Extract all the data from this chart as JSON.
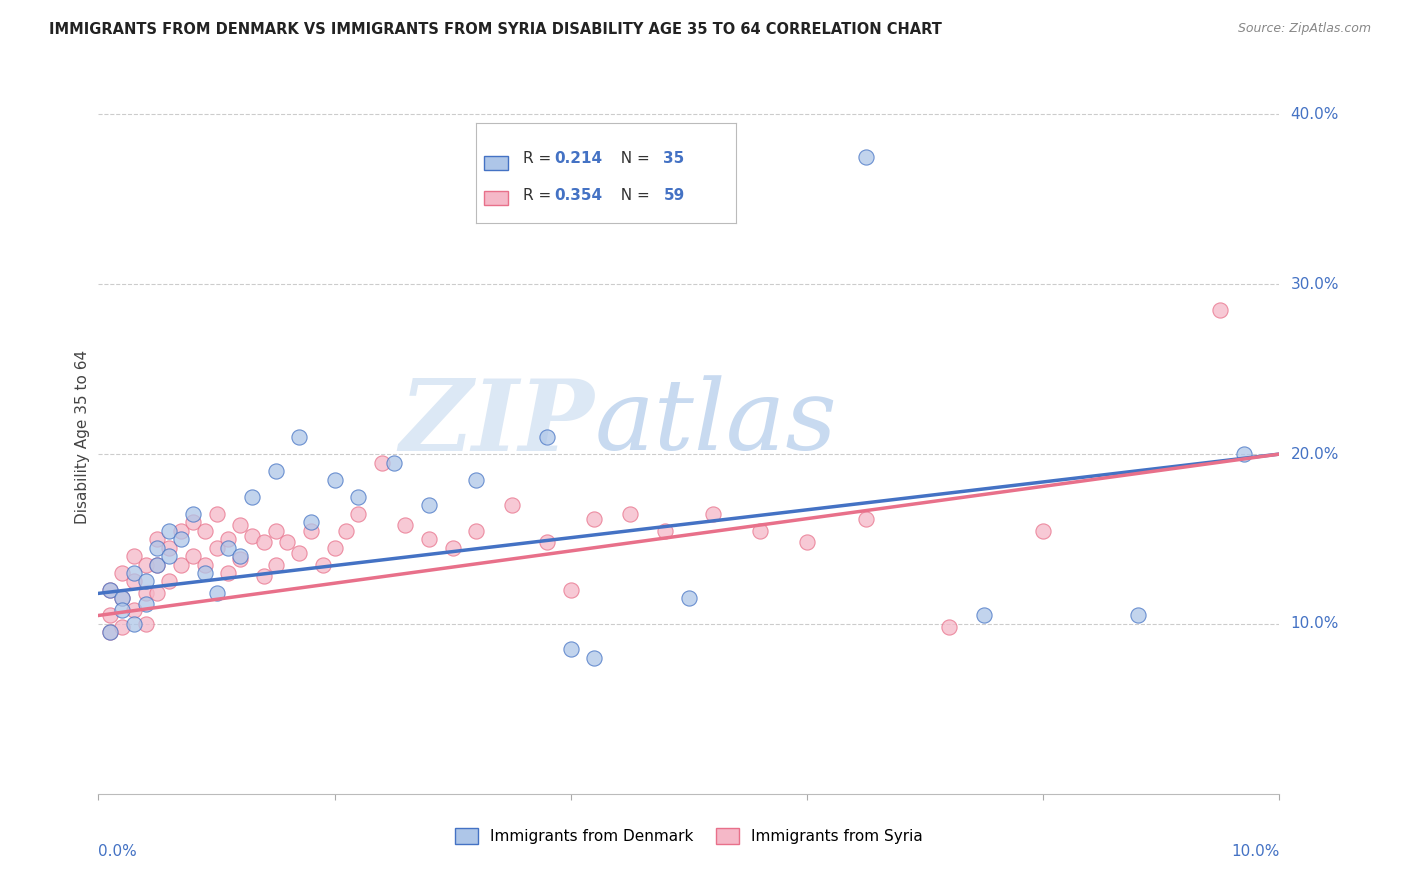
{
  "title": "IMMIGRANTS FROM DENMARK VS IMMIGRANTS FROM SYRIA DISABILITY AGE 35 TO 64 CORRELATION CHART",
  "source": "Source: ZipAtlas.com",
  "ylabel": "Disability Age 35 to 64",
  "xlim": [
    0.0,
    0.1
  ],
  "ylim": [
    0.0,
    0.42
  ],
  "yticks": [
    0.1,
    0.2,
    0.3,
    0.4
  ],
  "ytick_labels": [
    "10.0%",
    "20.0%",
    "30.0%",
    "40.0%"
  ],
  "denmark_R": 0.214,
  "denmark_N": 35,
  "syria_R": 0.354,
  "syria_N": 59,
  "denmark_color": "#aec6e8",
  "syria_color": "#f5b8c8",
  "denmark_line_color": "#4472c4",
  "syria_line_color": "#e8708a",
  "watermark_zip": "ZIP",
  "watermark_atlas": "atlas",
  "denmark_x": [
    0.001,
    0.001,
    0.002,
    0.002,
    0.003,
    0.003,
    0.004,
    0.004,
    0.005,
    0.005,
    0.006,
    0.006,
    0.007,
    0.008,
    0.009,
    0.01,
    0.011,
    0.012,
    0.013,
    0.015,
    0.017,
    0.018,
    0.02,
    0.022,
    0.025,
    0.028,
    0.032,
    0.038,
    0.04,
    0.042,
    0.05,
    0.065,
    0.075,
    0.088,
    0.097
  ],
  "denmark_y": [
    0.12,
    0.095,
    0.115,
    0.108,
    0.13,
    0.1,
    0.125,
    0.112,
    0.135,
    0.145,
    0.155,
    0.14,
    0.15,
    0.165,
    0.13,
    0.118,
    0.145,
    0.14,
    0.175,
    0.19,
    0.21,
    0.16,
    0.185,
    0.175,
    0.195,
    0.17,
    0.185,
    0.21,
    0.085,
    0.08,
    0.115,
    0.375,
    0.105,
    0.105,
    0.2
  ],
  "syria_x": [
    0.001,
    0.001,
    0.001,
    0.002,
    0.002,
    0.002,
    0.003,
    0.003,
    0.003,
    0.004,
    0.004,
    0.004,
    0.005,
    0.005,
    0.005,
    0.006,
    0.006,
    0.007,
    0.007,
    0.008,
    0.008,
    0.009,
    0.009,
    0.01,
    0.01,
    0.011,
    0.011,
    0.012,
    0.012,
    0.013,
    0.014,
    0.014,
    0.015,
    0.015,
    0.016,
    0.017,
    0.018,
    0.019,
    0.02,
    0.021,
    0.022,
    0.024,
    0.026,
    0.028,
    0.03,
    0.032,
    0.035,
    0.038,
    0.04,
    0.042,
    0.045,
    0.048,
    0.052,
    0.056,
    0.06,
    0.065,
    0.072,
    0.08,
    0.095
  ],
  "syria_y": [
    0.12,
    0.105,
    0.095,
    0.13,
    0.115,
    0.098,
    0.14,
    0.125,
    0.108,
    0.135,
    0.118,
    0.1,
    0.15,
    0.135,
    0.118,
    0.145,
    0.125,
    0.155,
    0.135,
    0.16,
    0.14,
    0.155,
    0.135,
    0.165,
    0.145,
    0.15,
    0.13,
    0.158,
    0.138,
    0.152,
    0.148,
    0.128,
    0.155,
    0.135,
    0.148,
    0.142,
    0.155,
    0.135,
    0.145,
    0.155,
    0.165,
    0.195,
    0.158,
    0.15,
    0.145,
    0.155,
    0.17,
    0.148,
    0.12,
    0.162,
    0.165,
    0.155,
    0.165,
    0.155,
    0.148,
    0.162,
    0.098,
    0.155,
    0.285
  ]
}
